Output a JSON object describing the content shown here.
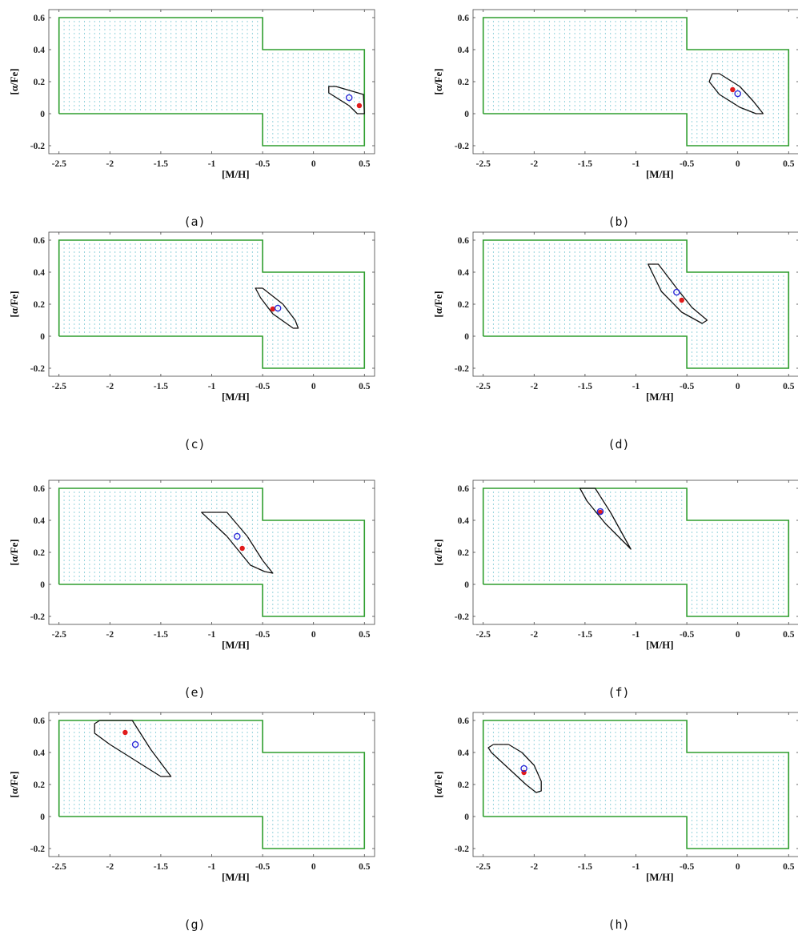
{
  "figure": {
    "colors": {
      "grid_points": "#2aa6b8",
      "boundary": "#2e9e2e",
      "contour": "#111111",
      "true_value": "#e01b1b",
      "estimate": "#2b2bd8",
      "axes": "#444444"
    },
    "icons": {
      "true_value": "filled-circle",
      "estimate": "open-circle"
    }
  },
  "chart_data": [
    {
      "caption": "(a)",
      "type": "scatter",
      "xlabel": "[M/H]",
      "ylabel": "[α/Fe]",
      "xlim": [
        -2.6,
        0.6
      ],
      "ylim": [
        -0.25,
        0.65
      ],
      "xticks": [
        -2.5,
        -2,
        -1.5,
        -1,
        -0.5,
        0,
        0.5
      ],
      "xtick_labels": [
        "-2.5",
        "-2",
        "-1.5",
        "-1",
        "-0.5",
        "0",
        "0.5"
      ],
      "yticks": [
        -0.2,
        0,
        0.2,
        0.4,
        0.6
      ],
      "ytick_labels": [
        "-0.2",
        "0",
        "0.2",
        "0.4",
        "0.6"
      ],
      "grid_region": [
        [
          -2.5,
          0
        ],
        [
          -2.5,
          0.6
        ],
        [
          -0.5,
          0.6
        ],
        [
          -0.5,
          0.4
        ],
        [
          0.5,
          0.4
        ],
        [
          0.5,
          -0.2
        ],
        [
          -0.5,
          -0.2
        ],
        [
          -0.5,
          0
        ]
      ],
      "grid_step": [
        0.05,
        0.025
      ],
      "contour": [
        [
          0.15,
          0.17
        ],
        [
          0.22,
          0.17
        ],
        [
          0.49,
          0.12
        ],
        [
          0.5,
          0.0
        ],
        [
          0.43,
          0.0
        ],
        [
          0.35,
          0.05
        ],
        [
          0.15,
          0.13
        ]
      ],
      "true_value": [
        0.45,
        0.05
      ],
      "estimate": [
        0.35,
        0.1
      ]
    },
    {
      "caption": "(b)",
      "type": "scatter",
      "xlabel": "[M/H]",
      "ylabel": "[α/Fe]",
      "xlim": [
        -2.6,
        0.6
      ],
      "ylim": [
        -0.25,
        0.65
      ],
      "xticks": [
        -2.5,
        -2,
        -1.5,
        -1,
        -0.5,
        0,
        0.5
      ],
      "xtick_labels": [
        "-2.5",
        "-2",
        "-1.5",
        "-1",
        "-0.5",
        "0",
        "0.5"
      ],
      "yticks": [
        -0.2,
        0,
        0.2,
        0.4,
        0.6
      ],
      "ytick_labels": [
        "-0.2",
        "0",
        "0.2",
        "0.4",
        "0.6"
      ],
      "grid_region": [
        [
          -2.5,
          0
        ],
        [
          -2.5,
          0.6
        ],
        [
          -0.5,
          0.6
        ],
        [
          -0.5,
          0.4
        ],
        [
          0.5,
          0.4
        ],
        [
          0.5,
          -0.2
        ],
        [
          -0.5,
          -0.2
        ],
        [
          -0.5,
          0
        ]
      ],
      "grid_step": [
        0.05,
        0.025
      ],
      "contour": [
        [
          -0.25,
          0.25
        ],
        [
          -0.18,
          0.25
        ],
        [
          0.02,
          0.17
        ],
        [
          0.15,
          0.08
        ],
        [
          0.25,
          0.0
        ],
        [
          0.18,
          0.0
        ],
        [
          0.02,
          0.04
        ],
        [
          -0.18,
          0.12
        ],
        [
          -0.28,
          0.2
        ]
      ],
      "true_value": [
        -0.05,
        0.15
      ],
      "estimate": [
        0.0,
        0.125
      ]
    },
    {
      "caption": "(c)",
      "type": "scatter",
      "xlabel": "[M/H]",
      "ylabel": "[α/Fe]",
      "xlim": [
        -2.6,
        0.6
      ],
      "ylim": [
        -0.25,
        0.65
      ],
      "xticks": [
        -2.5,
        -2,
        -1.5,
        -1,
        -0.5,
        0,
        0.5
      ],
      "xtick_labels": [
        "-2.5",
        "-2",
        "-1.5",
        "-1",
        "-0.5",
        "0",
        "0.5"
      ],
      "yticks": [
        -0.2,
        0,
        0.2,
        0.4,
        0.6
      ],
      "ytick_labels": [
        "-0.2",
        "0",
        "0.2",
        "0.4",
        "0.6"
      ],
      "grid_region": [
        [
          -2.5,
          0
        ],
        [
          -2.5,
          0.6
        ],
        [
          -0.5,
          0.6
        ],
        [
          -0.5,
          0.4
        ],
        [
          0.5,
          0.4
        ],
        [
          0.5,
          -0.2
        ],
        [
          -0.5,
          -0.2
        ],
        [
          -0.5,
          0
        ]
      ],
      "grid_step": [
        0.05,
        0.025
      ],
      "contour": [
        [
          -0.57,
          0.3
        ],
        [
          -0.5,
          0.3
        ],
        [
          -0.3,
          0.2
        ],
        [
          -0.18,
          0.1
        ],
        [
          -0.15,
          0.05
        ],
        [
          -0.2,
          0.05
        ],
        [
          -0.4,
          0.14
        ],
        [
          -0.52,
          0.24
        ]
      ],
      "true_value": [
        -0.4,
        0.17
      ],
      "estimate": [
        -0.35,
        0.175
      ]
    },
    {
      "caption": "(d)",
      "type": "scatter",
      "xlabel": "[M/H]",
      "ylabel": "[α/Fe]",
      "xlim": [
        -2.6,
        0.6
      ],
      "ylim": [
        -0.25,
        0.65
      ],
      "xticks": [
        -2.5,
        -2,
        -1.5,
        -1,
        -0.5,
        0,
        0.5
      ],
      "xtick_labels": [
        "-2.5",
        "-2",
        "-1.5",
        "-1",
        "-0.5",
        "0",
        "0.5"
      ],
      "yticks": [
        -0.2,
        0,
        0.2,
        0.4,
        0.6
      ],
      "ytick_labels": [
        "-0.2",
        "0",
        "0.2",
        "0.4",
        "0.6"
      ],
      "grid_region": [
        [
          -2.5,
          0
        ],
        [
          -2.5,
          0.6
        ],
        [
          -0.5,
          0.6
        ],
        [
          -0.5,
          0.4
        ],
        [
          0.5,
          0.4
        ],
        [
          0.5,
          -0.2
        ],
        [
          -0.5,
          -0.2
        ],
        [
          -0.5,
          0
        ]
      ],
      "grid_step": [
        0.05,
        0.025
      ],
      "contour": [
        [
          -0.88,
          0.45
        ],
        [
          -0.78,
          0.45
        ],
        [
          -0.6,
          0.3
        ],
        [
          -0.45,
          0.18
        ],
        [
          -0.3,
          0.1
        ],
        [
          -0.35,
          0.08
        ],
        [
          -0.55,
          0.15
        ],
        [
          -0.75,
          0.28
        ]
      ],
      "true_value": [
        -0.55,
        0.225
      ],
      "estimate": [
        -0.6,
        0.275
      ]
    },
    {
      "caption": "(e)",
      "type": "scatter",
      "xlabel": "[M/H]",
      "ylabel": "[α/Fe]",
      "xlim": [
        -2.6,
        0.6
      ],
      "ylim": [
        -0.25,
        0.65
      ],
      "xticks": [
        -2.5,
        -2,
        -1.5,
        -1,
        -0.5,
        0,
        0.5
      ],
      "xtick_labels": [
        "-2.5",
        "-2",
        "-1.5",
        "-1",
        "-0.5",
        "0",
        "0.5"
      ],
      "yticks": [
        -0.2,
        0,
        0.2,
        0.4,
        0.6
      ],
      "ytick_labels": [
        "-0.2",
        "0",
        "0.2",
        "0.4",
        "0.6"
      ],
      "grid_region": [
        [
          -2.5,
          0
        ],
        [
          -2.5,
          0.6
        ],
        [
          -0.5,
          0.6
        ],
        [
          -0.5,
          0.4
        ],
        [
          0.5,
          0.4
        ],
        [
          0.5,
          -0.2
        ],
        [
          -0.5,
          -0.2
        ],
        [
          -0.5,
          0
        ]
      ],
      "grid_step": [
        0.05,
        0.025
      ],
      "contour": [
        [
          -1.1,
          0.45
        ],
        [
          -0.85,
          0.45
        ],
        [
          -0.65,
          0.3
        ],
        [
          -0.5,
          0.15
        ],
        [
          -0.4,
          0.07
        ],
        [
          -0.48,
          0.08
        ],
        [
          -0.62,
          0.12
        ],
        [
          -0.85,
          0.3
        ]
      ],
      "true_value": [
        -0.7,
        0.225
      ],
      "estimate": [
        -0.75,
        0.3
      ]
    },
    {
      "caption": "(f)",
      "type": "scatter",
      "xlabel": "[M/H]",
      "ylabel": "[α/Fe]",
      "xlim": [
        -2.6,
        0.6
      ],
      "ylim": [
        -0.25,
        0.65
      ],
      "xticks": [
        -2.5,
        -2,
        -1.5,
        -1,
        -0.5,
        0,
        0.5
      ],
      "xtick_labels": [
        "-2.5",
        "-2",
        "-1.5",
        "-1",
        "-0.5",
        "0",
        "0.5"
      ],
      "yticks": [
        -0.2,
        0,
        0.2,
        0.4,
        0.6
      ],
      "ytick_labels": [
        "-0.2",
        "0",
        "0.2",
        "0.4",
        "0.6"
      ],
      "grid_region": [
        [
          -2.5,
          0
        ],
        [
          -2.5,
          0.6
        ],
        [
          -0.5,
          0.6
        ],
        [
          -0.5,
          0.4
        ],
        [
          0.5,
          0.4
        ],
        [
          0.5,
          -0.2
        ],
        [
          -0.5,
          -0.2
        ],
        [
          -0.5,
          0
        ]
      ],
      "grid_step": [
        0.05,
        0.025
      ],
      "contour": [
        [
          -1.55,
          0.6
        ],
        [
          -1.4,
          0.6
        ],
        [
          -1.25,
          0.45
        ],
        [
          -1.05,
          0.22
        ],
        [
          -1.08,
          0.24
        ],
        [
          -1.3,
          0.38
        ],
        [
          -1.48,
          0.52
        ]
      ],
      "true_value": [
        -1.35,
        0.45
      ],
      "estimate": [
        -1.35,
        0.455
      ]
    },
    {
      "caption": "(g)",
      "type": "scatter",
      "xlabel": "[M/H]",
      "ylabel": "[α/Fe]",
      "xlim": [
        -2.6,
        0.6
      ],
      "ylim": [
        -0.25,
        0.65
      ],
      "xticks": [
        -2.5,
        -2,
        -1.5,
        -1,
        -0.5,
        0,
        0.5
      ],
      "xtick_labels": [
        "-2.5",
        "-2",
        "-1.5",
        "-1",
        "-0.5",
        "0",
        "0.5"
      ],
      "yticks": [
        -0.2,
        0,
        0.2,
        0.4,
        0.6
      ],
      "ytick_labels": [
        "-0.2",
        "0",
        "0.2",
        "0.4",
        "0.6"
      ],
      "grid_region": [
        [
          -2.5,
          0
        ],
        [
          -2.5,
          0.6
        ],
        [
          -0.5,
          0.6
        ],
        [
          -0.5,
          0.4
        ],
        [
          0.5,
          0.4
        ],
        [
          0.5,
          -0.2
        ],
        [
          -0.5,
          -0.2
        ],
        [
          -0.5,
          0
        ]
      ],
      "grid_step": [
        0.05,
        0.025
      ],
      "contour": [
        [
          -2.15,
          0.58
        ],
        [
          -2.1,
          0.6
        ],
        [
          -1.78,
          0.6
        ],
        [
          -1.6,
          0.42
        ],
        [
          -1.4,
          0.25
        ],
        [
          -1.5,
          0.25
        ],
        [
          -1.75,
          0.35
        ],
        [
          -2.0,
          0.45
        ],
        [
          -2.15,
          0.52
        ]
      ],
      "true_value": [
        -1.85,
        0.525
      ],
      "estimate": [
        -1.75,
        0.45
      ]
    },
    {
      "caption": "(h)",
      "type": "scatter",
      "xlabel": "[M/H]",
      "ylabel": "[α/Fe]",
      "xlim": [
        -2.6,
        0.6
      ],
      "ylim": [
        -0.25,
        0.65
      ],
      "xticks": [
        -2.5,
        -2,
        -1.5,
        -1,
        -0.5,
        0,
        0.5
      ],
      "xtick_labels": [
        "-2.5",
        "-2",
        "-1.5",
        "-1",
        "-0.5",
        "0",
        "0.5"
      ],
      "yticks": [
        -0.2,
        0,
        0.2,
        0.4,
        0.6
      ],
      "ytick_labels": [
        "-0.2",
        "0",
        "0.2",
        "0.4",
        "0.6"
      ],
      "grid_region": [
        [
          -2.5,
          0
        ],
        [
          -2.5,
          0.6
        ],
        [
          -0.5,
          0.6
        ],
        [
          -0.5,
          0.4
        ],
        [
          0.5,
          0.4
        ],
        [
          0.5,
          -0.2
        ],
        [
          -0.5,
          -0.2
        ],
        [
          -0.5,
          0
        ]
      ],
      "grid_step": [
        0.05,
        0.025
      ],
      "contour": [
        [
          -2.45,
          0.43
        ],
        [
          -2.4,
          0.45
        ],
        [
          -2.25,
          0.45
        ],
        [
          -2.12,
          0.4
        ],
        [
          -2.0,
          0.32
        ],
        [
          -1.93,
          0.22
        ],
        [
          -1.93,
          0.16
        ],
        [
          -1.98,
          0.15
        ],
        [
          -2.08,
          0.2
        ],
        [
          -2.25,
          0.3
        ],
        [
          -2.42,
          0.4
        ]
      ],
      "true_value": [
        -2.1,
        0.275
      ],
      "estimate": [
        -2.1,
        0.3
      ]
    }
  ]
}
